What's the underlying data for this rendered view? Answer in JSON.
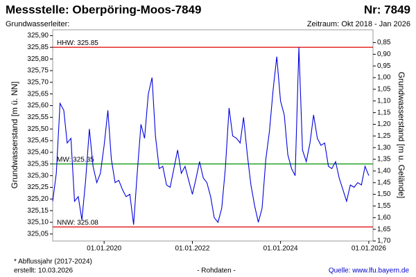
{
  "chart_data": {
    "type": "line",
    "title": "Messstelle: Oberpöring-Moos-7849",
    "number": "Nr: 7849",
    "aquifer": "Grundwasserleiter:",
    "period": "Zeitraum: Okt 2018 - Jan 2026",
    "ylabel": "Grundwasserstand [m ü. NN]",
    "y2label": "Grundwasserstand [m u. Gelände]",
    "footnote": "* Abflussjahr (2017-2024)",
    "created": "erstellt:  10.03.2026",
    "status": "- Rohdaten -",
    "source": "Quelle: www.lfu.bayern.de",
    "x": [
      "2018-11-01",
      "2018-12-01",
      "2019-01-01",
      "2019-02-01",
      "2019-03-01",
      "2019-04-01",
      "2019-05-01",
      "2019-06-01",
      "2019-07-01",
      "2019-08-01",
      "2019-09-01",
      "2019-10-01",
      "2019-11-01",
      "2019-12-01",
      "2020-01-01",
      "2020-02-01",
      "2020-03-01",
      "2020-04-01",
      "2020-05-01",
      "2020-06-01",
      "2020-07-01",
      "2020-08-01",
      "2020-09-01",
      "2020-10-01",
      "2020-11-01",
      "2020-12-01",
      "2021-01-01",
      "2021-02-01",
      "2021-03-01",
      "2021-04-01",
      "2021-05-01",
      "2021-06-01",
      "2021-07-01",
      "2021-08-01",
      "2021-09-01",
      "2021-10-01",
      "2021-11-01",
      "2021-12-01",
      "2022-01-01",
      "2022-02-01",
      "2022-03-01",
      "2022-04-01",
      "2022-05-01",
      "2022-06-01",
      "2022-07-01",
      "2022-08-01",
      "2022-09-01",
      "2022-10-01",
      "2022-11-01",
      "2022-12-01",
      "2023-01-01",
      "2023-02-01",
      "2023-03-01",
      "2023-04-01",
      "2023-05-01",
      "2023-06-01",
      "2023-07-01",
      "2023-08-01",
      "2023-09-01",
      "2023-10-01",
      "2023-11-01",
      "2023-12-01",
      "2024-01-01",
      "2024-02-01",
      "2024-03-01",
      "2024-04-01",
      "2024-05-01",
      "2024-06-01",
      "2024-07-01",
      "2024-08-01",
      "2024-09-01",
      "2024-10-01",
      "2024-11-01",
      "2024-12-01",
      "2025-01-01",
      "2025-02-01",
      "2025-03-01",
      "2025-04-01",
      "2025-05-01",
      "2025-06-01",
      "2025-07-01",
      "2025-08-01",
      "2025-09-01",
      "2025-10-01",
      "2025-11-01",
      "2025-12-01",
      "2026-01-01"
    ],
    "series": [
      {
        "color": "#0000dd",
        "values": [
          325.19,
          325.31,
          325.61,
          325.58,
          325.44,
          325.46,
          325.19,
          325.21,
          325.11,
          325.28,
          325.5,
          325.34,
          325.27,
          325.31,
          325.43,
          325.58,
          325.37,
          325.27,
          325.28,
          325.24,
          325.21,
          325.22,
          325.09,
          325.31,
          325.52,
          325.46,
          325.65,
          325.72,
          325.47,
          325.33,
          325.34,
          325.26,
          325.25,
          325.33,
          325.41,
          325.31,
          325.34,
          325.28,
          325.22,
          325.29,
          325.36,
          325.29,
          325.27,
          325.21,
          325.12,
          325.1,
          325.16,
          325.33,
          325.59,
          325.47,
          325.46,
          325.44,
          325.55,
          325.39,
          325.26,
          325.17,
          325.1,
          325.16,
          325.37,
          325.49,
          325.67,
          325.81,
          325.62,
          325.56,
          325.39,
          325.33,
          325.3,
          325.85,
          325.41,
          325.36,
          325.44,
          325.56,
          325.46,
          325.43,
          325.44,
          325.34,
          325.33,
          325.36,
          325.29,
          325.24,
          325.19,
          325.26,
          325.25,
          325.27,
          325.26,
          325.34,
          325.3
        ]
      }
    ],
    "ref_lines": [
      {
        "label": "HHW: 325.85",
        "value": 325.85,
        "color": "#e00000"
      },
      {
        "label": "MW: 325.35",
        "value": 325.35,
        "color": "#009000"
      },
      {
        "label": "NNW: 325.08",
        "value": 325.08,
        "color": "#e00000"
      }
    ],
    "xlim": [
      "2018-11-01",
      "2026-02-05"
    ],
    "xticks": [
      {
        "value": "2020-01-01",
        "label": "01.01.2020"
      },
      {
        "value": "2022-01-01",
        "label": "01.01.2022"
      },
      {
        "value": "2024-01-01",
        "label": "01.01.2024"
      },
      {
        "value": "2026-01-01",
        "label": "01.01.2026"
      }
    ],
    "ylim": [
      325.02,
      325.925
    ],
    "yticks": [
      {
        "value": 325.05,
        "label": "325,05"
      },
      {
        "value": 325.1,
        "label": "325,10"
      },
      {
        "value": 325.15,
        "label": "325,15"
      },
      {
        "value": 325.2,
        "label": "325,20"
      },
      {
        "value": 325.25,
        "label": "325,25"
      },
      {
        "value": 325.3,
        "label": "325,30"
      },
      {
        "value": 325.35,
        "label": "325,35"
      },
      {
        "value": 325.4,
        "label": "325,40"
      },
      {
        "value": 325.45,
        "label": "325,45"
      },
      {
        "value": 325.5,
        "label": "325,50"
      },
      {
        "value": 325.55,
        "label": "325,55"
      },
      {
        "value": 325.6,
        "label": "325,60"
      },
      {
        "value": 325.65,
        "label": "325,65"
      },
      {
        "value": 325.7,
        "label": "325,70"
      },
      {
        "value": 325.75,
        "label": "325,75"
      },
      {
        "value": 325.8,
        "label": "325,80"
      },
      {
        "value": 325.85,
        "label": "325,85"
      },
      {
        "value": 325.9,
        "label": "325,90"
      }
    ],
    "y2lim": [
      1.7,
      0.795
    ],
    "y2ticks": [
      {
        "value": 0.85,
        "label": "0,85"
      },
      {
        "value": 0.9,
        "label": "0,90"
      },
      {
        "value": 0.95,
        "label": "0,95"
      },
      {
        "value": 1.0,
        "label": "1,00"
      },
      {
        "value": 1.05,
        "label": "1,05"
      },
      {
        "value": 1.1,
        "label": "1,10"
      },
      {
        "value": 1.15,
        "label": "1,15"
      },
      {
        "value": 1.2,
        "label": "1,20"
      },
      {
        "value": 1.25,
        "label": "1,25"
      },
      {
        "value": 1.3,
        "label": "1,30"
      },
      {
        "value": 1.35,
        "label": "1,35"
      },
      {
        "value": 1.4,
        "label": "1,40"
      },
      {
        "value": 1.45,
        "label": "1,45"
      },
      {
        "value": 1.5,
        "label": "1,50"
      },
      {
        "value": 1.55,
        "label": "1,55"
      },
      {
        "value": 1.6,
        "label": "1,60"
      },
      {
        "value": 1.65,
        "label": "1,65"
      },
      {
        "value": 1.7,
        "label": "1,70"
      }
    ]
  }
}
